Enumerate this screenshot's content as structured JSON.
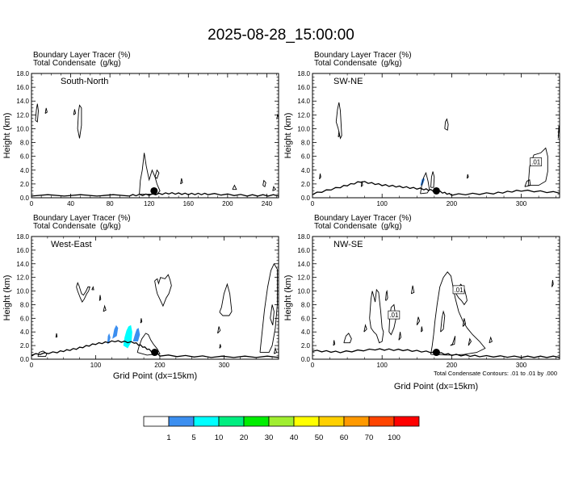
{
  "title": "2025-08-28_15:00:00",
  "panel_header": {
    "line1_label": "Boundary Layer Tracer",
    "line1_unit": "(%)",
    "line2_label": "Total Condensate",
    "line2_unit": "(g/kg)"
  },
  "ylabel": "Height (km)",
  "y_ticks": [
    "0.0",
    "2.0",
    "4.0",
    "6.0",
    "8.0",
    "10.0",
    "12.0",
    "14.0",
    "16.0",
    "18.0"
  ],
  "xlabel": "Grid Point (dx=15km)",
  "contour_note": "Total Condensate Contours: .01 to .01 by .000",
  "contour_label": ".01",
  "colorbar": {
    "labels": [
      "1",
      "5",
      "10",
      "20",
      "30",
      "40",
      "50",
      "60",
      "70",
      "100"
    ],
    "colors": [
      "#ffffff",
      "#3c8ff0",
      "#00ffff",
      "#00ee80",
      "#00ee00",
      "#a0ee30",
      "#ffff00",
      "#ffd000",
      "#ff9900",
      "#ff4400",
      "#ff0000"
    ]
  },
  "chart_data": [
    {
      "type": "contour",
      "panel_label": "South-North",
      "x_ticks": [
        "0",
        "40",
        "80",
        "120",
        "160",
        "200",
        "240"
      ],
      "xlim": [
        0,
        252
      ],
      "ylim": [
        0,
        18
      ],
      "tracer_fill": [],
      "condensate_contour_level": 0.01,
      "storm_marker": {
        "x": 125,
        "y": 1.0
      },
      "boundary_layer_top": [
        [
          0,
          0.3
        ],
        [
          100,
          0.3
        ],
        [
          120,
          0.4
        ],
        [
          140,
          0.6
        ],
        [
          160,
          0.5
        ],
        [
          180,
          0.5
        ],
        [
          220,
          0.3
        ],
        [
          252,
          0.3
        ]
      ]
    },
    {
      "type": "contour",
      "panel_label": "SW-NE",
      "x_ticks": [
        "0",
        "100",
        "200",
        "300"
      ],
      "xlim": [
        0,
        355
      ],
      "ylim": [
        0,
        18
      ],
      "tracer_fill": [
        {
          "x": 158,
          "y": 2.4,
          "value_range": "1-5"
        }
      ],
      "condensate_contour_level": 0.01,
      "contour_labels": [
        ".01"
      ],
      "storm_marker": {
        "x": 178,
        "y": 1.0
      },
      "boundary_layer_top": [
        [
          0,
          0.5
        ],
        [
          40,
          1.5
        ],
        [
          70,
          2.3
        ],
        [
          100,
          1.8
        ],
        [
          130,
          1.5
        ],
        [
          160,
          1.2
        ],
        [
          180,
          0.9
        ],
        [
          200,
          0.4
        ],
        [
          260,
          0.6
        ],
        [
          300,
          1.0
        ],
        [
          355,
          0.7
        ]
      ]
    },
    {
      "type": "contour",
      "panel_label": "West-East",
      "x_ticks": [
        "0",
        "100",
        "200",
        "300"
      ],
      "xlim": [
        0,
        385
      ],
      "ylim": [
        0,
        18
      ],
      "tracer_fill": [
        {
          "x": 122,
          "y": 3.0,
          "value_range": "1-5"
        },
        {
          "x": 132,
          "y": 3.8,
          "value_range": "1-5"
        },
        {
          "x": 150,
          "y": 3.5,
          "value_range": "5-10"
        },
        {
          "x": 165,
          "y": 3.3,
          "value_range": "1-5"
        }
      ],
      "condensate_contour_level": 0.01,
      "storm_marker": {
        "x": 192,
        "y": 1.0
      },
      "boundary_layer_top": [
        [
          0,
          0.6
        ],
        [
          40,
          1.0
        ],
        [
          70,
          1.5
        ],
        [
          100,
          2.2
        ],
        [
          130,
          2.6
        ],
        [
          160,
          2.4
        ],
        [
          180,
          1.5
        ],
        [
          200,
          0.5
        ],
        [
          280,
          0.3
        ],
        [
          385,
          0.3
        ]
      ]
    },
    {
      "type": "contour",
      "panel_label": "NW-SE",
      "x_ticks": [
        "0",
        "100",
        "200",
        "300"
      ],
      "xlim": [
        0,
        355
      ],
      "ylim": [
        0,
        18
      ],
      "tracer_fill": [],
      "condensate_contour_level": 0.01,
      "contour_labels": [
        ".01",
        ".01"
      ],
      "storm_marker": {
        "x": 178,
        "y": 1.0
      },
      "boundary_layer_top": [
        [
          0,
          1.2
        ],
        [
          40,
          1.0
        ],
        [
          90,
          1.4
        ],
        [
          130,
          1.3
        ],
        [
          170,
          1.0
        ],
        [
          200,
          0.6
        ],
        [
          240,
          0.4
        ],
        [
          300,
          0.3
        ],
        [
          355,
          0.3
        ]
      ]
    }
  ]
}
